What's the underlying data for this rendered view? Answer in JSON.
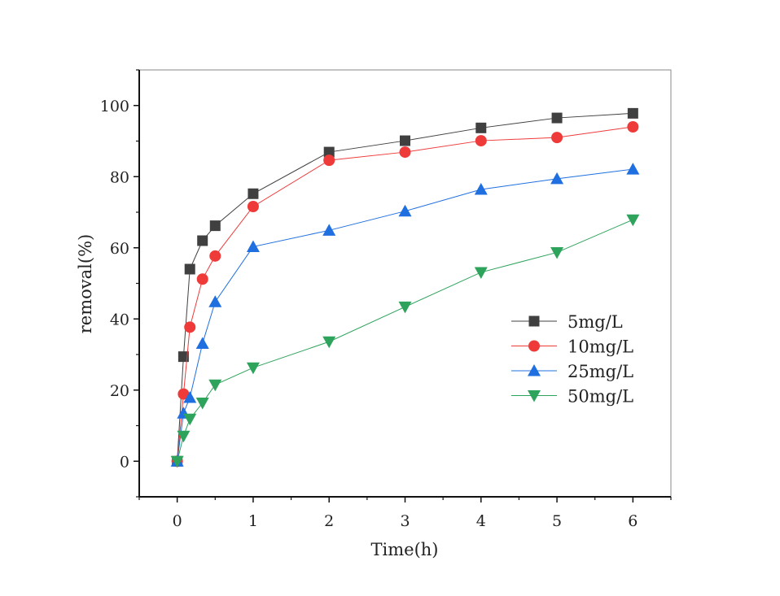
{
  "chart_data": {
    "type": "line",
    "title": "",
    "xlabel": "Time(h)",
    "ylabel": "removal(%)",
    "xlim": [
      -0.5,
      6.5
    ],
    "ylim": [
      -10,
      110
    ],
    "xticks": [
      0,
      1,
      2,
      3,
      4,
      5,
      6
    ],
    "yticks": [
      0,
      20,
      40,
      60,
      80,
      100
    ],
    "grid": false,
    "legend_position": "center-right",
    "x": [
      0,
      0.083,
      0.167,
      0.333,
      0.5,
      1,
      2,
      3,
      4,
      5,
      6
    ],
    "series": [
      {
        "name": "5mg/L",
        "marker": "square",
        "color": "#404040",
        "values": [
          0,
          29.4,
          54.0,
          62.0,
          66.2,
          75.2,
          86.9,
          90.1,
          93.7,
          96.5,
          97.8
        ]
      },
      {
        "name": "10mg/L",
        "marker": "circle",
        "color": "#ef3a3a",
        "values": [
          0,
          18.9,
          37.7,
          51.2,
          57.7,
          71.6,
          84.6,
          86.9,
          90.1,
          91.0,
          94.0
        ]
      },
      {
        "name": "25mg/L",
        "marker": "triangle-up",
        "color": "#1f6fe0",
        "values": [
          0,
          13.5,
          17.9,
          33.1,
          44.8,
          60.3,
          64.9,
          70.3,
          76.4,
          79.4,
          82.1
        ]
      },
      {
        "name": "50mg/L",
        "marker": "triangle-down",
        "color": "#2ea35c",
        "values": [
          0,
          7.1,
          11.9,
          16.4,
          21.5,
          26.3,
          33.6,
          43.4,
          53.1,
          58.7,
          67.9
        ]
      }
    ]
  }
}
